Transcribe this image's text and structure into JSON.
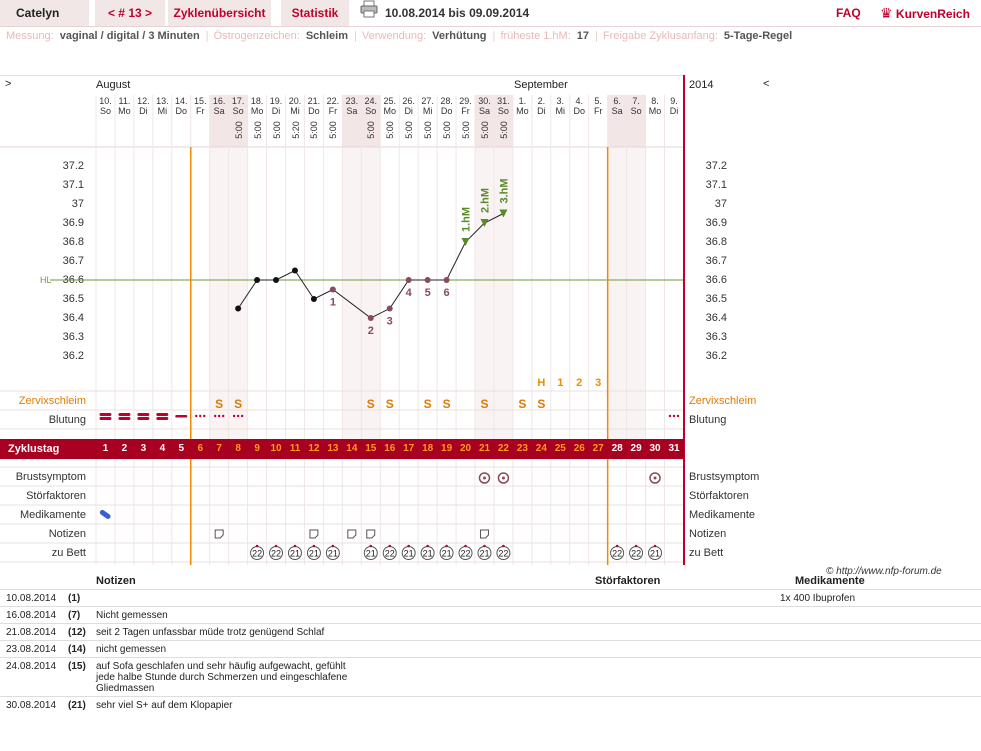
{
  "header": {
    "username": "Catelyn",
    "cycle_nav": "< # 13 >",
    "tab_overview": "Zyklenübersicht",
    "tab_statistics": "Statistik",
    "date_range": "10.08.2014 bis 09.09.2014",
    "faq": "FAQ",
    "brand": "KurvenReich"
  },
  "info": {
    "measurement_label": "Messung:",
    "measurement_value": "vaginal / digital / 3 Minuten",
    "estrogen_label": "Östrogenzeichen:",
    "estrogen_value": "Schleim",
    "usage_label": "Verwendung:",
    "usage_value": "Verhütung",
    "earliest_label": "früheste 1.hM:",
    "earliest_value": "17",
    "release_label": "Freigabe Zyklusanfang:",
    "release_value": "5-Tage-Regel"
  },
  "chart": {
    "nav_left": ">",
    "nav_right": "<",
    "month_1": "August",
    "month_2": "September",
    "year": "2014",
    "hl_label": "HL",
    "days": [
      {
        "d": "10.",
        "w": "So",
        "t": "",
        "wk": false
      },
      {
        "d": "11.",
        "w": "Mo",
        "t": "",
        "wk": false
      },
      {
        "d": "12.",
        "w": "Di",
        "t": "",
        "wk": false
      },
      {
        "d": "13.",
        "w": "Mi",
        "t": "",
        "wk": false
      },
      {
        "d": "14.",
        "w": "Do",
        "t": "",
        "wk": false
      },
      {
        "d": "15.",
        "w": "Fr",
        "t": "",
        "wk": false
      },
      {
        "d": "16.",
        "w": "Sa",
        "t": "",
        "wk": true
      },
      {
        "d": "17.",
        "w": "So",
        "t": "5:00",
        "wk": true
      },
      {
        "d": "18.",
        "w": "Mo",
        "t": "5:00",
        "wk": false
      },
      {
        "d": "19.",
        "w": "Di",
        "t": "5:00",
        "wk": false
      },
      {
        "d": "20.",
        "w": "Mi",
        "t": "5:20",
        "wk": false
      },
      {
        "d": "21.",
        "w": "Do",
        "t": "5:00",
        "wk": false
      },
      {
        "d": "22.",
        "w": "Fr",
        "t": "5:00",
        "wk": false
      },
      {
        "d": "23.",
        "w": "Sa",
        "t": "",
        "wk": true
      },
      {
        "d": "24.",
        "w": "So",
        "t": "5:00",
        "wk": true
      },
      {
        "d": "25.",
        "w": "Mo",
        "t": "5:00",
        "wk": false
      },
      {
        "d": "26.",
        "w": "Di",
        "t": "5:00",
        "wk": false
      },
      {
        "d": "27.",
        "w": "Mi",
        "t": "5:00",
        "wk": false
      },
      {
        "d": "28.",
        "w": "Do",
        "t": "5:00",
        "wk": false
      },
      {
        "d": "29.",
        "w": "Fr",
        "t": "5:00",
        "wk": false
      },
      {
        "d": "30.",
        "w": "Sa",
        "t": "5:00",
        "wk": true
      },
      {
        "d": "31.",
        "w": "So",
        "t": "5:00",
        "wk": true
      },
      {
        "d": "1.",
        "w": "Mo",
        "t": "",
        "wk": false
      },
      {
        "d": "2.",
        "w": "Di",
        "t": "",
        "wk": false
      },
      {
        "d": "3.",
        "w": "Mi",
        "t": "",
        "wk": false
      },
      {
        "d": "4.",
        "w": "Do",
        "t": "",
        "wk": false
      },
      {
        "d": "5.",
        "w": "Fr",
        "t": "",
        "wk": false
      },
      {
        "d": "6.",
        "w": "Sa",
        "t": "",
        "wk": true
      },
      {
        "d": "7.",
        "w": "So",
        "t": "",
        "wk": true
      },
      {
        "d": "8.",
        "w": "Mo",
        "t": "",
        "wk": false
      },
      {
        "d": "9.",
        "w": "Di",
        "t": "",
        "wk": false
      }
    ],
    "y_ticks": [
      "37.2",
      "37.1",
      "37",
      "36.9",
      "36.8",
      "36.7",
      "36.6",
      "36.5",
      "36.4",
      "36.3",
      "36.2"
    ],
    "temps": [
      null,
      null,
      null,
      null,
      null,
      null,
      null,
      36.45,
      36.6,
      36.6,
      36.65,
      36.5,
      36.55,
      null,
      36.4,
      36.45,
      36.6,
      36.6,
      36.6,
      36.8,
      36.9,
      36.95,
      null,
      null,
      null,
      null,
      null,
      null,
      null,
      null,
      null
    ],
    "lower_labels": [
      {
        "day": 12,
        "text": "1"
      },
      {
        "day": 14,
        "text": "2"
      },
      {
        "day": 15,
        "text": "3"
      },
      {
        "day": 16,
        "text": "4"
      },
      {
        "day": 17,
        "text": "5"
      },
      {
        "day": 18,
        "text": "6"
      }
    ],
    "hm_labels": [
      {
        "day": 19,
        "text": "1.hM"
      },
      {
        "day": 20,
        "text": "2.hM"
      },
      {
        "day": 21,
        "text": "3.hM"
      }
    ],
    "peak_labels": [
      {
        "day": 23,
        "text": "H"
      },
      {
        "day": 24,
        "text": "1"
      },
      {
        "day": 25,
        "text": "2"
      },
      {
        "day": 26,
        "text": "3"
      }
    ],
    "zervix_marks": [
      {
        "day": 6,
        "text": "S"
      },
      {
        "day": 7,
        "text": "S"
      },
      {
        "day": 14,
        "text": "S"
      },
      {
        "day": 15,
        "text": "S"
      },
      {
        "day": 17,
        "text": "S"
      },
      {
        "day": 18,
        "text": "S"
      },
      {
        "day": 20,
        "text": "S"
      },
      {
        "day": 22,
        "text": "S"
      },
      {
        "day": 23,
        "text": "S"
      }
    ],
    "row_labels": {
      "zervix": "Zervixschleim",
      "bleeding": "Blutung",
      "cycle_day": "Zyklustag",
      "breast": "Brustsymptom",
      "disturbances": "Störfaktoren",
      "medication": "Medikamente",
      "notes": "Notizen",
      "bed": "zu Bett"
    },
    "cycle_days": [
      "1",
      "2",
      "3",
      "4",
      "5",
      "6",
      "7",
      "8",
      "9",
      "10",
      "11",
      "12",
      "13",
      "14",
      "15",
      "16",
      "17",
      "18",
      "19",
      "20",
      "21",
      "22",
      "23",
      "24",
      "25",
      "26",
      "27",
      "28",
      "29",
      "30",
      "31"
    ],
    "bed_times": [
      {
        "day": 8,
        "t": "22"
      },
      {
        "day": 9,
        "t": "22"
      },
      {
        "day": 10,
        "t": "21"
      },
      {
        "day": 11,
        "t": "21"
      },
      {
        "day": 12,
        "t": "21"
      },
      {
        "day": 14,
        "t": "21"
      },
      {
        "day": 15,
        "t": "22"
      },
      {
        "day": 16,
        "t": "21"
      },
      {
        "day": 17,
        "t": "21"
      },
      {
        "day": 18,
        "t": "21"
      },
      {
        "day": 19,
        "t": "22"
      },
      {
        "day": 20,
        "t": "21"
      },
      {
        "day": 21,
        "t": "22"
      },
      {
        "day": 27,
        "t": "22"
      },
      {
        "day": 28,
        "t": "22"
      },
      {
        "day": 29,
        "t": "21"
      }
    ],
    "colors": {
      "accent": "#c0002a",
      "bar": "#a80020",
      "orange": "#e07b00",
      "hl_line": "#6a9a3a",
      "hm_green": "#5a8a2a",
      "point": "#111111",
      "lower_point": "#8a4a5a"
    }
  },
  "copyright": "© http://www.nfp-forum.de",
  "notes": {
    "head_notes": "Notizen",
    "head_disturbances": "Störfaktoren",
    "head_medication": "Medikamente",
    "rows": [
      {
        "date": "10.08.2014",
        "day": "(1)",
        "text": "",
        "med": "1x 400 Ibuprofen"
      },
      {
        "date": "16.08.2014",
        "day": "(7)",
        "text": "Nicht gemessen",
        "med": ""
      },
      {
        "date": "21.08.2014",
        "day": "(12)",
        "text": "seit 2 Tagen unfassbar müde trotz genügend Schlaf",
        "med": ""
      },
      {
        "date": "23.08.2014",
        "day": "(14)",
        "text": "nicht gemessen",
        "med": ""
      },
      {
        "date": "24.08.2014",
        "day": "(15)",
        "text": "auf Sofa geschlafen und sehr häufig aufgewacht, gefühlt jede halbe Stunde durch Schmerzen und eingeschlafene Gliedmassen",
        "med": ""
      },
      {
        "date": "30.08.2014",
        "day": "(21)",
        "text": "sehr viel S+ auf dem Klopapier",
        "med": ""
      }
    ]
  }
}
